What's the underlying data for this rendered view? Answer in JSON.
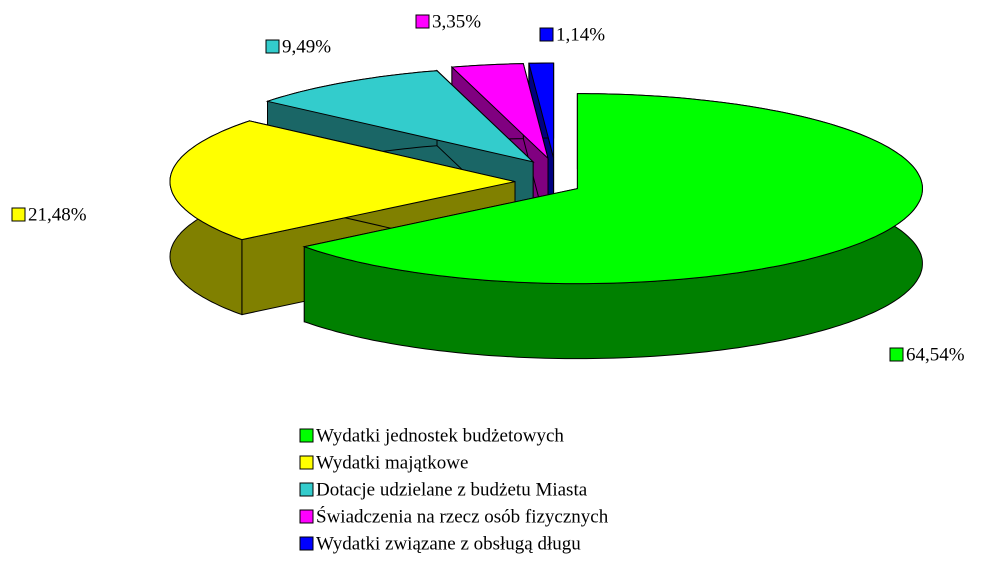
{
  "chart_data": {
    "type": "pie",
    "categories": [
      "Wydatki jednostek budżetowych",
      "Wydatki majątkowe",
      "Dotacje udzielane z budżetu Miasta",
      "Świadczenia na rzecz osób fizycznych",
      "Wydatki związane z obsługą długu"
    ],
    "values": [
      64.54,
      21.48,
      9.49,
      3.35,
      1.14
    ],
    "value_labels": [
      "64,54%",
      "21,48%",
      "9,49%",
      "3,35%",
      "1,14%"
    ],
    "colors": [
      "#00ff00",
      "#ffff00",
      "#33cccc",
      "#ff00ff",
      "#0000ff"
    ]
  }
}
